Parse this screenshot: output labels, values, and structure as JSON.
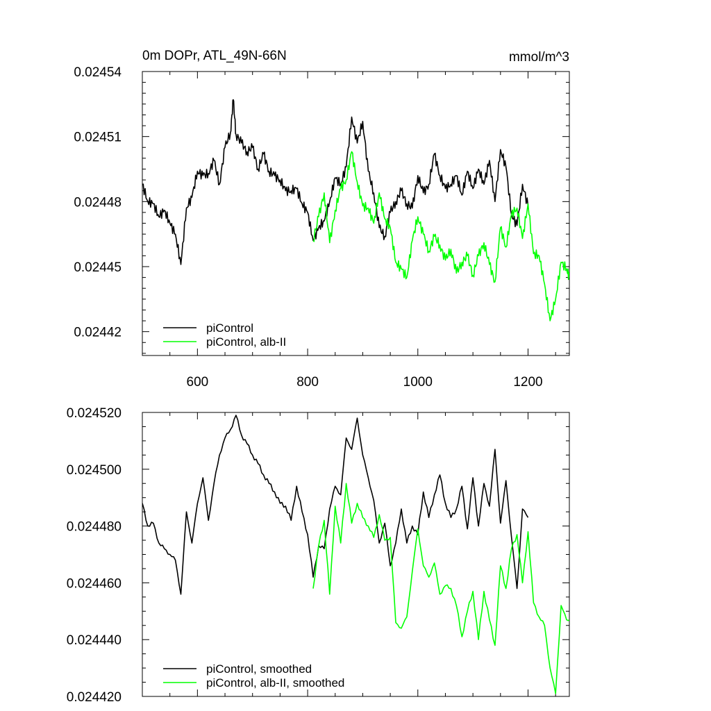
{
  "colors": {
    "control": "#000000",
    "experiment": "#00ff00"
  },
  "chart_data": [
    {
      "type": "line",
      "title": "0m DOPr, ATL_49N-66N",
      "units": "mmol/m^3",
      "xlim": [
        500,
        1275
      ],
      "ylim": [
        0.024409,
        0.02454
      ],
      "xticks": [
        600,
        800,
        1000,
        1200
      ],
      "xticklabels": [
        "600",
        "800",
        "1000",
        "1200"
      ],
      "yticks": [
        0.02442,
        0.02445,
        0.02448,
        0.02451,
        0.02454
      ],
      "yticklabels": [
        "0.02442",
        "0.02445",
        "0.02448",
        "0.02451",
        "0.02454"
      ],
      "legend": "bottom-left",
      "series": [
        {
          "name": "piControl",
          "color": "#000000",
          "x": [
            500,
            510,
            520,
            530,
            540,
            550,
            560,
            570,
            580,
            590,
            600,
            610,
            620,
            630,
            640,
            650,
            660,
            665,
            670,
            680,
            690,
            700,
            710,
            720,
            730,
            740,
            750,
            760,
            770,
            780,
            790,
            800,
            810,
            820,
            830,
            840,
            850,
            860,
            870,
            880,
            890,
            900,
            910,
            920,
            930,
            940,
            950,
            960,
            970,
            980,
            990,
            1000,
            1010,
            1020,
            1030,
            1040,
            1050,
            1060,
            1070,
            1080,
            1090,
            1100,
            1110,
            1120,
            1130,
            1140,
            1150,
            1160,
            1170,
            1180,
            1190,
            1200
          ],
          "y": [
            0.024488,
            0.02448,
            0.024479,
            0.024473,
            0.024476,
            0.02447,
            0.024465,
            0.024451,
            0.024477,
            0.024482,
            0.024494,
            0.024492,
            0.024493,
            0.024499,
            0.024488,
            0.024505,
            0.024512,
            0.024527,
            0.024511,
            0.024507,
            0.024503,
            0.024505,
            0.024495,
            0.024502,
            0.024494,
            0.024492,
            0.02449,
            0.024485,
            0.024485,
            0.024486,
            0.024479,
            0.024475,
            0.024462,
            0.024468,
            0.024471,
            0.02448,
            0.024491,
            0.024488,
            0.024496,
            0.024519,
            0.024507,
            0.024517,
            0.024494,
            0.024484,
            0.024468,
            0.024464,
            0.024475,
            0.02448,
            0.024485,
            0.024479,
            0.024477,
            0.024492,
            0.024484,
            0.024488,
            0.024502,
            0.024492,
            0.024486,
            0.024488,
            0.024492,
            0.024483,
            0.024494,
            0.024486,
            0.024495,
            0.024488,
            0.024499,
            0.02448,
            0.024504,
            0.024496,
            0.024474,
            0.024469,
            0.024488,
            0.024478
          ]
        },
        {
          "name": "piControl, alb-II",
          "color": "#00ff00",
          "x": [
            810,
            820,
            830,
            840,
            850,
            860,
            870,
            880,
            890,
            900,
            910,
            920,
            930,
            940,
            950,
            960,
            970,
            980,
            990,
            1000,
            1010,
            1020,
            1030,
            1040,
            1050,
            1060,
            1070,
            1080,
            1090,
            1100,
            1110,
            1120,
            1130,
            1140,
            1150,
            1160,
            1170,
            1180,
            1190,
            1200,
            1210,
            1220,
            1230,
            1240,
            1250,
            1260,
            1270,
            1275
          ],
          "y": [
            0.024462,
            0.024473,
            0.024484,
            0.024461,
            0.024476,
            0.024486,
            0.02449,
            0.024503,
            0.024489,
            0.024478,
            0.024477,
            0.02447,
            0.024484,
            0.024472,
            0.024468,
            0.024452,
            0.024449,
            0.024445,
            0.024462,
            0.024473,
            0.024465,
            0.024457,
            0.024464,
            0.02446,
            0.024453,
            0.024458,
            0.024447,
            0.024452,
            0.024455,
            0.024446,
            0.024455,
            0.024461,
            0.024451,
            0.024443,
            0.024468,
            0.024459,
            0.024474,
            0.024477,
            0.024463,
            0.024479,
            0.024456,
            0.024455,
            0.024442,
            0.024425,
            0.024435,
            0.024452,
            0.024449,
            0.024445
          ]
        }
      ]
    },
    {
      "type": "line",
      "title": "",
      "xlim": [
        500,
        1275
      ],
      "ylim": [
        0.02442,
        0.02452
      ],
      "xticks": [
        600,
        800,
        1000,
        1200
      ],
      "xticklabels": [],
      "yticks": [
        0.02442,
        0.02444,
        0.02446,
        0.02448,
        0.0245,
        0.02452
      ],
      "yticklabels": [
        "0.024420",
        "0.024440",
        "0.024460",
        "0.024480",
        "0.024500",
        "0.024520"
      ],
      "legend": "bottom-left",
      "series": [
        {
          "name": "piControl, smoothed",
          "color": "#000000",
          "x": [
            500,
            510,
            520,
            530,
            540,
            550,
            560,
            570,
            580,
            590,
            600,
            610,
            620,
            630,
            640,
            650,
            660,
            670,
            680,
            690,
            700,
            710,
            720,
            730,
            740,
            750,
            760,
            770,
            780,
            790,
            800,
            810,
            820,
            830,
            840,
            850,
            860,
            870,
            880,
            890,
            900,
            910,
            920,
            930,
            940,
            950,
            960,
            970,
            980,
            990,
            1000,
            1010,
            1020,
            1030,
            1040,
            1050,
            1060,
            1070,
            1080,
            1090,
            1100,
            1110,
            1120,
            1130,
            1140,
            1150,
            1160,
            1170,
            1180,
            1190,
            1200
          ],
          "y": [
            0.024488,
            0.02448,
            0.024481,
            0.024474,
            0.024472,
            0.02447,
            0.024468,
            0.024456,
            0.024485,
            0.024474,
            0.024488,
            0.024497,
            0.024482,
            0.024495,
            0.024505,
            0.024511,
            0.024514,
            0.024519,
            0.024512,
            0.024509,
            0.024505,
            0.024502,
            0.024498,
            0.024495,
            0.024492,
            0.024488,
            0.024487,
            0.024482,
            0.024494,
            0.024485,
            0.024477,
            0.024462,
            0.024473,
            0.024472,
            0.024486,
            0.024494,
            0.024491,
            0.024511,
            0.024507,
            0.024518,
            0.024505,
            0.024497,
            0.024489,
            0.024474,
            0.024481,
            0.024466,
            0.024474,
            0.024486,
            0.024474,
            0.02448,
            0.024477,
            0.024492,
            0.024483,
            0.024491,
            0.024498,
            0.024488,
            0.024483,
            0.024486,
            0.024494,
            0.024479,
            0.024497,
            0.02448,
            0.024495,
            0.024487,
            0.024507,
            0.024481,
            0.024496,
            0.024476,
            0.024458,
            0.024486,
            0.024483
          ]
        },
        {
          "name": "piControl, alb-II, smoothed",
          "color": "#00ff00",
          "x": [
            810,
            820,
            830,
            840,
            850,
            860,
            870,
            880,
            890,
            900,
            910,
            920,
            930,
            940,
            950,
            960,
            970,
            980,
            990,
            1000,
            1010,
            1020,
            1030,
            1040,
            1050,
            1060,
            1070,
            1080,
            1090,
            1100,
            1110,
            1120,
            1130,
            1140,
            1150,
            1160,
            1170,
            1180,
            1190,
            1200,
            1210,
            1220,
            1230,
            1240,
            1250,
            1260,
            1270,
            1275
          ],
          "y": [
            0.024458,
            0.024473,
            0.024482,
            0.024456,
            0.024487,
            0.024474,
            0.024495,
            0.024481,
            0.024488,
            0.024483,
            0.02448,
            0.024476,
            0.024484,
            0.024475,
            0.024476,
            0.024446,
            0.024444,
            0.024448,
            0.024464,
            0.024479,
            0.024466,
            0.024462,
            0.024467,
            0.024456,
            0.024459,
            0.024458,
            0.024452,
            0.024441,
            0.02445,
            0.024457,
            0.02444,
            0.024457,
            0.024447,
            0.024438,
            0.024466,
            0.024458,
            0.024472,
            0.024477,
            0.02446,
            0.024478,
            0.024453,
            0.024448,
            0.024445,
            0.02443,
            0.024421,
            0.024452,
            0.024447,
            0.024447
          ]
        }
      ]
    }
  ]
}
